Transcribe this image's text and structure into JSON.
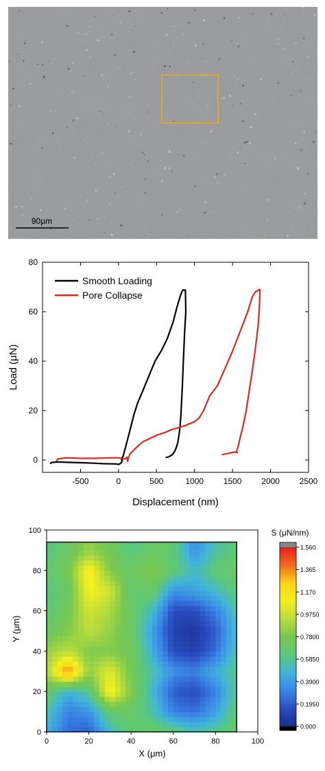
{
  "micrograph": {
    "scale_bar_label": "90μm",
    "roi_color": "#f0a81e"
  },
  "chart_data": [
    {
      "type": "line",
      "title": "",
      "xlabel": "Displacement (nm)",
      "ylabel": "Load (μN)",
      "xlim": [
        -1000,
        2500
      ],
      "ylim": [
        -5,
        80
      ],
      "xticks": [
        -500,
        0,
        500,
        1000,
        1500,
        2000,
        2500
      ],
      "yticks": [
        0,
        20,
        40,
        60,
        80
      ],
      "legend_position": "top-left",
      "grid": false,
      "series": [
        {
          "name": "Smooth Loading",
          "color": "#000000",
          "x": [
            -900,
            -880,
            -800,
            -600,
            -400,
            -200,
            -20,
            0,
            20,
            40,
            50,
            45,
            40,
            60,
            100,
            150,
            200,
            250,
            320,
            400,
            480,
            560,
            640,
            720,
            770,
            800,
            820,
            840,
            850,
            860,
            870,
            880,
            885,
            870,
            860,
            850,
            840,
            830,
            820,
            810,
            800,
            790,
            780,
            760,
            740,
            720,
            700,
            680,
            650,
            620
          ],
          "y": [
            -1.5,
            -1.0,
            -0.8,
            -1.0,
            -1.2,
            -1.5,
            -1.6,
            -1.8,
            -1.5,
            -1.0,
            0,
            1.0,
            0,
            1.5,
            6,
            12,
            18,
            23,
            28,
            34,
            40,
            44,
            49,
            56,
            62,
            65,
            67,
            68.5,
            68.8,
            68.8,
            68.6,
            68.8,
            60,
            52,
            45,
            38,
            30,
            24,
            18,
            14,
            11,
            9,
            7,
            5,
            3.6,
            2.6,
            2.0,
            1.6,
            1.2,
            1.0
          ]
        },
        {
          "name": "Pore Collapse",
          "color": "#e2271f",
          "x": [
            -820,
            -800,
            -700,
            -500,
            -300,
            -100,
            0,
            50,
            80,
            100,
            110,
            120,
            130,
            150,
            200,
            260,
            320,
            400,
            500,
            600,
            700,
            800,
            900,
            1000,
            1060,
            1120,
            1200,
            1300,
            1400,
            1500,
            1600,
            1700,
            1760,
            1800,
            1830,
            1850,
            1860,
            1855,
            1840,
            1800,
            1760,
            1720,
            1680,
            1640,
            1600,
            1570,
            1550,
            1560,
            1520,
            1460,
            1400,
            1360
          ],
          "y": [
            -0.5,
            0.4,
            0.9,
            0.7,
            0.7,
            0.9,
            0.9,
            0.6,
            0.5,
            0.6,
            1.2,
            -0.5,
            0.8,
            2.4,
            4.0,
            5.8,
            7.4,
            8.5,
            10,
            11,
            12.3,
            13.2,
            14.2,
            15.5,
            17,
            20,
            26,
            30,
            37,
            44,
            52,
            60,
            66,
            68,
            68.5,
            69,
            69,
            63,
            55,
            45,
            36,
            28,
            20,
            14,
            9,
            5,
            3.5,
            3.0,
            3.2,
            2.8,
            2.4,
            2.2
          ]
        }
      ]
    },
    {
      "type": "heatmap",
      "title": "",
      "xlabel": "X (μm)",
      "ylabel": "Y (μm)",
      "xlim": [
        0,
        100
      ],
      "ylim": [
        0,
        100
      ],
      "xticks": [
        0,
        20,
        40,
        60,
        80,
        100
      ],
      "yticks": [
        0,
        20,
        40,
        60,
        80,
        100
      ],
      "data_extent": [
        0,
        90,
        0,
        94
      ],
      "colorbar_title": "S (μN/nm)",
      "colorbar_ticks": [
        "1.560",
        "1.365",
        "1.170",
        "0.9750",
        "0.7800",
        "0.5850",
        "0.3900",
        "0.1950",
        "0.000"
      ],
      "colorbar_colors": [
        "#e8201e",
        "#f26a1c",
        "#ffd41a",
        "#f4ef1e",
        "#b8dc3c",
        "#78c850",
        "#5cc878",
        "#42b4dc",
        "#3a86e6",
        "#2a4cc0",
        "#1a2e8c"
      ],
      "colorbar_range": [
        0,
        1.56
      ],
      "grid_x": [
        0,
        10,
        20,
        30,
        40,
        50,
        60,
        70,
        80,
        90
      ],
      "grid_y": [
        0,
        10,
        20,
        30,
        40,
        50,
        60,
        70,
        80,
        90
      ],
      "values": [
        [
          0.45,
          0.25,
          0.2,
          0.5,
          0.65,
          0.7,
          0.65,
          0.55,
          0.6,
          0.7
        ],
        [
          0.55,
          0.3,
          0.35,
          0.65,
          0.7,
          0.55,
          0.3,
          0.25,
          0.4,
          0.65
        ],
        [
          0.7,
          0.45,
          0.6,
          1.15,
          0.8,
          0.5,
          0.2,
          0.15,
          0.3,
          0.6
        ],
        [
          0.9,
          1.4,
          0.85,
          1.05,
          0.75,
          0.55,
          0.35,
          0.3,
          0.45,
          0.6
        ],
        [
          0.85,
          0.95,
          0.8,
          0.8,
          0.75,
          0.45,
          0.15,
          0.1,
          0.25,
          0.55
        ],
        [
          0.7,
          0.8,
          0.95,
          0.85,
          0.7,
          0.4,
          0.1,
          0.05,
          0.2,
          0.5
        ],
        [
          0.65,
          0.75,
          1.0,
          0.9,
          0.7,
          0.5,
          0.15,
          0.15,
          0.3,
          0.55
        ],
        [
          0.6,
          0.7,
          1.1,
          1.0,
          0.65,
          0.7,
          0.35,
          0.4,
          0.5,
          0.65
        ],
        [
          0.65,
          0.75,
          1.15,
          0.8,
          0.7,
          0.8,
          0.65,
          0.5,
          0.65,
          0.7
        ],
        [
          0.6,
          0.7,
          0.85,
          0.75,
          0.6,
          0.7,
          0.65,
          0.35,
          0.55,
          0.65
        ]
      ]
    }
  ]
}
